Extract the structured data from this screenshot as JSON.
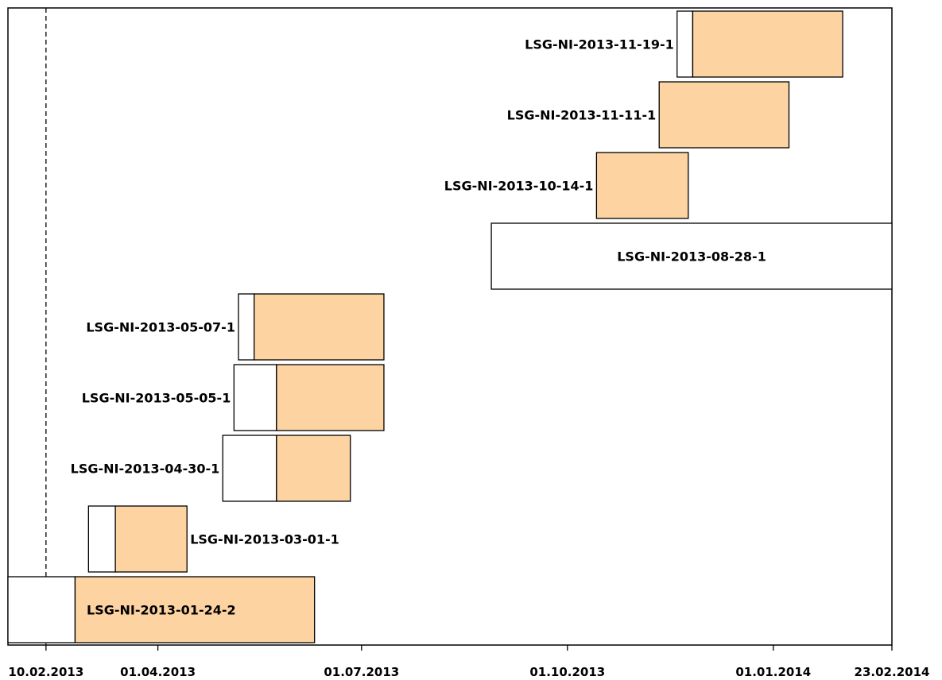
{
  "chart_data": {
    "type": "gantt",
    "x_axis": {
      "type": "date",
      "range": [
        "2013-01-24",
        "2014-02-23"
      ],
      "ticks": [
        {
          "date": "2013-02-10",
          "label": "10.02.2013"
        },
        {
          "date": "2013-04-01",
          "label": "01.04.2013"
        },
        {
          "date": "2013-07-01",
          "label": "01.07.2013"
        },
        {
          "date": "2013-10-01",
          "label": "01.10.2013"
        },
        {
          "date": "2014-01-01",
          "label": "01.01.2014"
        },
        {
          "date": "2014-02-23",
          "label": "23.02.2014"
        }
      ]
    },
    "reference_line": {
      "date": "2013-02-10",
      "style": "dashed"
    },
    "colors": {
      "fill": "#fdd3a2",
      "outline": "#000000",
      "background": "#ffffff"
    },
    "tasks": [
      {
        "name": "LSG-NI-2013-01-24-2",
        "start": "2013-01-24",
        "split": "2013-02-23",
        "end": "2013-06-10",
        "label_position": "inside"
      },
      {
        "name": "LSG-NI-2013-03-01-1",
        "start": "2013-03-01",
        "split": "2013-03-13",
        "end": "2013-04-14",
        "label_position": "right"
      },
      {
        "name": "LSG-NI-2013-04-30-1",
        "start": "2013-04-30",
        "split": "2013-05-24",
        "end": "2013-06-26",
        "label_position": "left"
      },
      {
        "name": "LSG-NI-2013-05-05-1",
        "start": "2013-05-05",
        "split": "2013-05-24",
        "end": "2013-07-11",
        "label_position": "left"
      },
      {
        "name": "LSG-NI-2013-05-07-1",
        "start": "2013-05-07",
        "split": "2013-05-14",
        "end": "2013-07-11",
        "label_position": "left"
      },
      {
        "name": "LSG-NI-2013-08-28-1",
        "start": "2013-08-28",
        "split": "2014-02-23",
        "end": "2014-02-23",
        "label_position": "inside"
      },
      {
        "name": "LSG-NI-2013-10-14-1",
        "start": "2013-10-14",
        "split": "2013-10-14",
        "end": "2013-11-24",
        "label_position": "left"
      },
      {
        "name": "LSG-NI-2013-11-11-1",
        "start": "2013-11-11",
        "split": "2013-11-11",
        "end": "2014-01-08",
        "label_position": "left"
      },
      {
        "name": "LSG-NI-2013-11-19-1",
        "start": "2013-11-19",
        "split": "2013-11-26",
        "end": "2014-02-01",
        "label_position": "left"
      }
    ]
  }
}
